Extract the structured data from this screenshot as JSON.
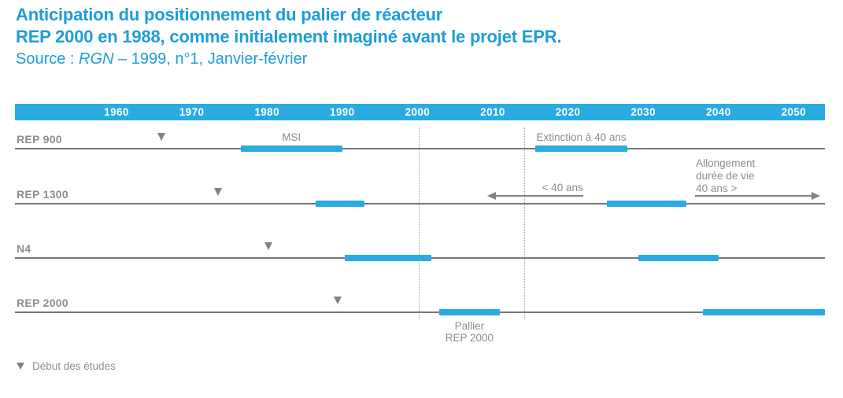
{
  "title": {
    "line1": "Anticipation du positionnement du palier de réacteur",
    "line2": "REP 2000 en 1988, comme initialement imaginé avant le projet EPR.",
    "source_prefix": "Source : ",
    "source_journal": "RGN",
    "source_suffix": " – 1999, n°1, Janvier-février"
  },
  "colors": {
    "title_blue": "#1D9DD9",
    "accent_cyan": "#29ABE2",
    "text_gray": "#8A8D90",
    "line_gray": "#77787B",
    "marker_gray": "#808285",
    "dotted_gray": "#9C9EA0"
  },
  "chart_data": {
    "type": "bar",
    "subtype": "gantt-timeline",
    "x_axis": {
      "unit": "year",
      "ticks": [
        "1960",
        "1970",
        "1980",
        "1990",
        "2000",
        "2010",
        "2020",
        "2030",
        "2040",
        "2050"
      ],
      "range": [
        1946.5,
        2054.3
      ],
      "grid": false
    },
    "reference_lines": [
      {
        "year": 2000.2,
        "style": "dotted"
      },
      {
        "year": 2014.2,
        "style": "dotted"
      }
    ],
    "rows": [
      {
        "label": "REP 900",
        "study_start": 1966,
        "bars": [
          {
            "start": 1976.5,
            "end": 1990,
            "label_lines": [
              "MSI"
            ],
            "label_pos": "above-center"
          },
          {
            "start": 2015.6,
            "end": 2027.9,
            "label_lines": [
              "Extinction à 40 ans"
            ],
            "label_pos": "above-left"
          }
        ]
      },
      {
        "label": "REP 1300",
        "study_start": 1973.5,
        "bars": [
          {
            "start": 1986.5,
            "end": 1992.9
          },
          {
            "start": 2025.2,
            "end": 2035.7
          }
        ],
        "arrows": [
          {
            "direction": "left",
            "tip_year": 2009.3,
            "tail_year": 2022,
            "label_lines": [
              "< 40 ans"
            ],
            "label_align": "right"
          },
          {
            "direction": "right",
            "tip_year": 2053.5,
            "tail_year": 2036.9,
            "label_lines": [
              "Allongement",
              "durée de vie",
              "40 ans >"
            ],
            "label_align": "left"
          }
        ]
      },
      {
        "label": "N4",
        "study_start": 1980.2,
        "bars": [
          {
            "start": 1990.3,
            "end": 2001.8
          },
          {
            "start": 2029.4,
            "end": 2040
          }
        ]
      },
      {
        "label": "REP 2000",
        "study_start": 1989.4,
        "bars": [
          {
            "start": 2002.9,
            "end": 2010.9,
            "label_lines": [
              "Pallier",
              "REP 2000"
            ],
            "label_pos": "below-center"
          },
          {
            "start": 2037.9,
            "end": 2054.3
          }
        ]
      }
    ],
    "legend": {
      "marker": "triangle-down",
      "label": "Début des études"
    }
  }
}
